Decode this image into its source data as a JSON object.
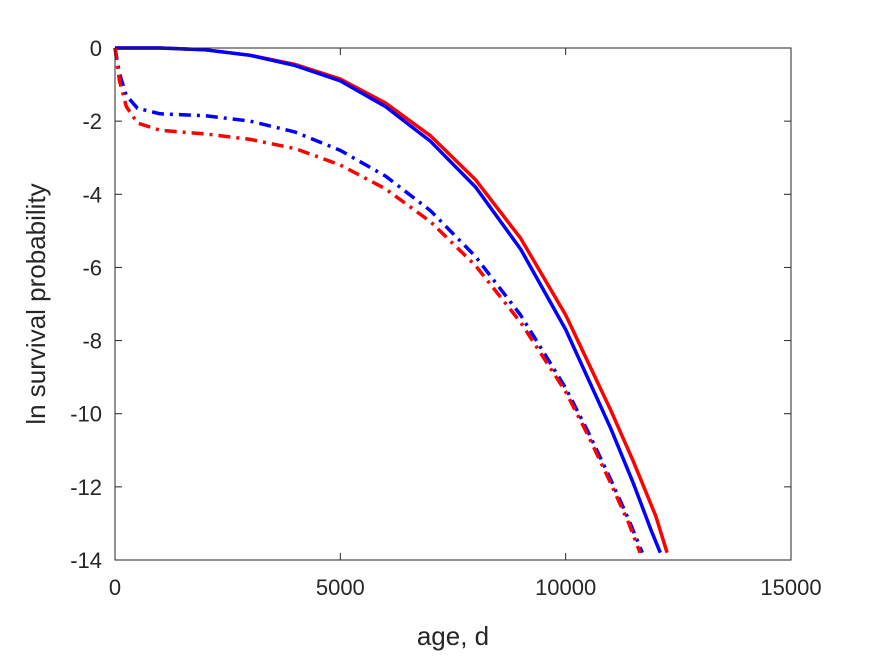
{
  "chart_data": {
    "type": "line",
    "title": "",
    "xlabel": "age, d",
    "ylabel": "ln survival probability",
    "xlim": [
      0,
      15000
    ],
    "ylim": [
      -14,
      0
    ],
    "xticks": [
      0,
      5000,
      10000,
      15000
    ],
    "xtick_labels": [
      "0",
      "5000",
      "10000",
      "15000"
    ],
    "yticks": [
      0,
      -2,
      -4,
      -6,
      -8,
      -10,
      -12,
      -14
    ],
    "ytick_labels": [
      "0",
      "-2",
      "-4",
      "-6",
      "-8",
      "-10",
      "-12",
      "-14"
    ],
    "grid": false,
    "legend": "none",
    "series": [
      {
        "color": "#ff0000",
        "style": "solid",
        "x": [
          0,
          1000,
          2000,
          3000,
          4000,
          5000,
          6000,
          7000,
          8000,
          9000,
          10000,
          11000,
          11500,
          12000,
          12250
        ],
        "y": [
          0,
          0,
          -0.05,
          -0.2,
          -0.45,
          -0.85,
          -1.5,
          -2.4,
          -3.6,
          -5.2,
          -7.3,
          -9.9,
          -11.3,
          -12.8,
          -13.8
        ]
      },
      {
        "color": "#0000ff",
        "style": "solid",
        "x": [
          0,
          1000,
          2000,
          3000,
          4000,
          5000,
          6000,
          7000,
          8000,
          9000,
          10000,
          11000,
          11500,
          11900,
          12100
        ],
        "y": [
          0,
          0,
          -0.05,
          -0.2,
          -0.48,
          -0.9,
          -1.6,
          -2.55,
          -3.8,
          -5.5,
          -7.7,
          -10.4,
          -11.9,
          -13.2,
          -13.8
        ]
      },
      {
        "color": "#0000ff",
        "style": "dashdot",
        "x": [
          0,
          100,
          250,
          500,
          1000,
          2000,
          3000,
          4000,
          5000,
          6000,
          7000,
          8000,
          9000,
          10000,
          10500,
          11000,
          11400,
          11700
        ],
        "y": [
          0,
          -0.7,
          -1.3,
          -1.65,
          -1.8,
          -1.85,
          -2.0,
          -2.3,
          -2.8,
          -3.5,
          -4.45,
          -5.7,
          -7.3,
          -9.3,
          -10.5,
          -11.8,
          -12.9,
          -13.8
        ]
      },
      {
        "color": "#ff0000",
        "style": "dashdot",
        "x": [
          0,
          100,
          250,
          500,
          1000,
          2000,
          3000,
          4000,
          5000,
          6000,
          7000,
          8000,
          9000,
          10000,
          10500,
          11000,
          11400,
          11650
        ],
        "y": [
          0,
          -0.9,
          -1.6,
          -2.05,
          -2.25,
          -2.35,
          -2.5,
          -2.75,
          -3.2,
          -3.85,
          -4.75,
          -5.95,
          -7.5,
          -9.4,
          -10.6,
          -11.9,
          -13.0,
          -13.8
        ]
      }
    ]
  }
}
